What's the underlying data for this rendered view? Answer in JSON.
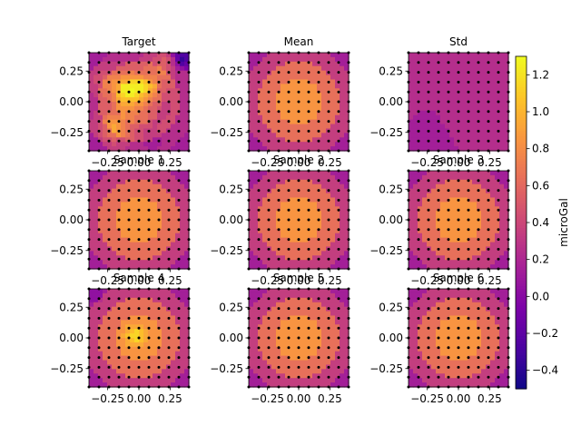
{
  "chart_data": {
    "type": "heatmap",
    "colormap": "plasma",
    "grid": false,
    "panels": [
      {
        "title": "Target",
        "pattern": "target"
      },
      {
        "title": "Mean",
        "pattern": "radial"
      },
      {
        "title": "Std",
        "pattern": "std"
      },
      {
        "title": "Sample 1",
        "pattern": "radial"
      },
      {
        "title": "Sample 2",
        "pattern": "radial"
      },
      {
        "title": "Sample 3",
        "pattern": "radial"
      },
      {
        "title": "Sample 4",
        "pattern": "sample4"
      },
      {
        "title": "Sample 5",
        "pattern": "radial"
      },
      {
        "title": "Sample 6",
        "pattern": "radial"
      }
    ],
    "axis_range": [
      -0.4,
      0.4
    ],
    "x_ticks": [
      -0.25,
      0.0,
      0.25
    ],
    "x_tick_labels": [
      "−0.25",
      "0.00",
      "0.25"
    ],
    "y_ticks": [
      0.25,
      0.0,
      -0.25
    ],
    "y_tick_labels": [
      "0.25",
      "0.00",
      "−0.25"
    ],
    "colorbar": {
      "label": "microGal",
      "range": [
        -0.5,
        1.3
      ],
      "ticks": [
        1.2,
        1.0,
        0.8,
        0.6,
        0.4,
        0.2,
        0.0,
        -0.2,
        -0.4
      ],
      "tick_labels": [
        "1.2",
        "1.0",
        "0.8",
        "0.6",
        "0.4",
        "0.2",
        "0.0",
        "−0.2",
        "−0.4"
      ]
    },
    "stations": [
      -0.4,
      -0.32,
      -0.24,
      -0.16,
      -0.08,
      0.0,
      0.08,
      0.16,
      0.24,
      0.32,
      0.4
    ]
  }
}
